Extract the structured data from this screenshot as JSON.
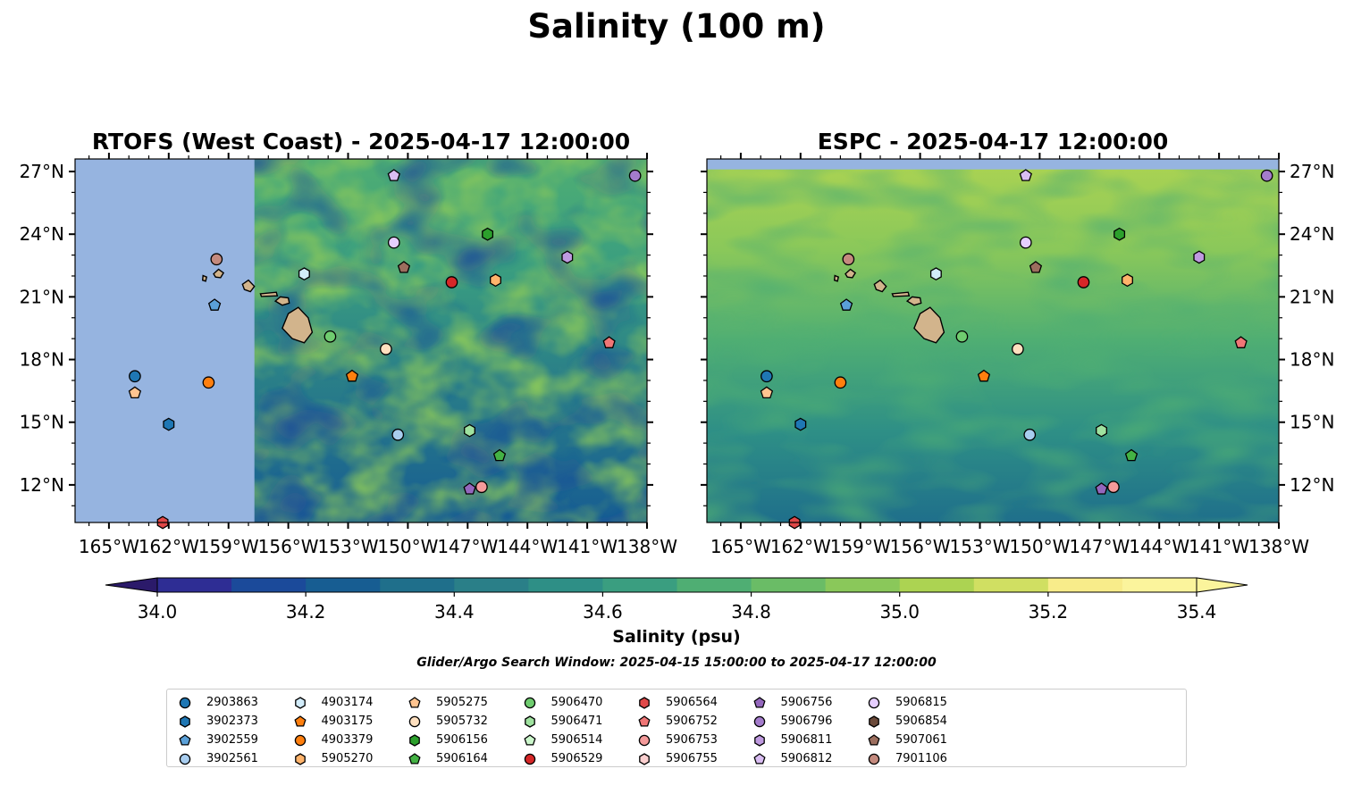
{
  "figure": {
    "title": "Salinity (100 m)",
    "search_window": "Glider/Argo Search Window: 2025-04-15 15:00:00 to 2025-04-17 12:00:00"
  },
  "colors": {
    "land_mask": "#96b4e0",
    "island_fill": "#d2b48c"
  },
  "chart_data": [
    {
      "type": "heatmap",
      "title": "RTOFS (West Coast) - 2025-04-17 12:00:00",
      "x_ticks": [
        "165°W",
        "162°W",
        "159°W",
        "156°W",
        "153°W",
        "150°W",
        "147°W",
        "144°W",
        "141°W",
        "138°W"
      ],
      "y_ticks": [
        "27°N",
        "24°N",
        "21°N",
        "18°N",
        "15°N",
        "12°N"
      ],
      "xlim": [
        -166.7,
        -138
      ],
      "ylim": [
        10.2,
        27.6
      ],
      "y_tick_side": "left",
      "no_data_region_lon_max": -157.7,
      "background_salinity": 34.75
    },
    {
      "type": "heatmap",
      "title": "ESPC - 2025-04-17 12:00:00",
      "x_ticks": [
        "165°W",
        "162°W",
        "159°W",
        "156°W",
        "153°W",
        "150°W",
        "147°W",
        "144°W",
        "141°W",
        "138°W"
      ],
      "y_ticks": [
        "27°N",
        "24°N",
        "21°N",
        "18°N",
        "15°N",
        "12°N"
      ],
      "xlim": [
        -166.7,
        -138
      ],
      "ylim": [
        10.2,
        27.6
      ],
      "y_tick_side": "right",
      "no_data_region_lat_min": 27.1,
      "background_salinity": 34.95
    }
  ],
  "colorbar": {
    "label": "Salinity (psu)",
    "ticks": [
      "34.0",
      "34.2",
      "34.4",
      "34.6",
      "34.8",
      "35.0",
      "35.2",
      "35.4"
    ],
    "min": 34.0,
    "max": 35.4,
    "step": 0.1,
    "colors": [
      "#2b1a6a",
      "#2e2d94",
      "#1b4a9a",
      "#175d92",
      "#1f6f8b",
      "#2a7f88",
      "#2e8f86",
      "#3a9e80",
      "#4fae73",
      "#6abc66",
      "#8ac85a",
      "#acd352",
      "#d0df62",
      "#f8ec8a",
      "#fbf49c"
    ]
  },
  "islands": [
    {
      "name": "hawaii",
      "lon": -155.5,
      "lat": 19.6
    },
    {
      "name": "maui",
      "lon": -156.3,
      "lat": 20.8
    },
    {
      "name": "molokai",
      "lon": -157.0,
      "lat": 21.1
    },
    {
      "name": "oahu",
      "lon": -158.0,
      "lat": 21.5
    },
    {
      "name": "kauai",
      "lon": -159.5,
      "lat": 22.1
    },
    {
      "name": "niihau",
      "lon": -160.2,
      "lat": 21.9
    }
  ],
  "floats": [
    {
      "id": "2903863",
      "marker": "circle",
      "color": "#1f77b4",
      "lon": -163.7,
      "lat": 17.2
    },
    {
      "id": "3902373",
      "marker": "hexagon",
      "color": "#1f77b4",
      "lon": -162.0,
      "lat": 14.9
    },
    {
      "id": "3902559",
      "marker": "pentagon",
      "color": "#5aa0d8",
      "lon": -159.7,
      "lat": 20.6
    },
    {
      "id": "3902561",
      "marker": "circle",
      "color": "#a8cdef",
      "lon": -150.5,
      "lat": 14.4
    },
    {
      "id": "4903174",
      "marker": "hexagon",
      "color": "#d2ecfa",
      "lon": -155.2,
      "lat": 22.1
    },
    {
      "id": "4903175",
      "marker": "pentagon",
      "color": "#ff7f0e",
      "lon": -152.8,
      "lat": 17.2
    },
    {
      "id": "4903379",
      "marker": "circle",
      "color": "#ff7f0e",
      "lon": -160.0,
      "lat": 16.9
    },
    {
      "id": "5905270",
      "marker": "hexagon",
      "color": "#ffb36b",
      "lon": -145.6,
      "lat": 21.8
    },
    {
      "id": "5905275",
      "marker": "pentagon",
      "color": "#ffc490",
      "lon": -163.7,
      "lat": 16.4
    },
    {
      "id": "5905732",
      "marker": "circle",
      "color": "#ffe0bf",
      "lon": -151.1,
      "lat": 18.5
    },
    {
      "id": "5906156",
      "marker": "hexagon",
      "color": "#2ca02c",
      "lon": -146.0,
      "lat": 24.0
    },
    {
      "id": "5906164",
      "marker": "pentagon",
      "color": "#44b244",
      "lon": -145.4,
      "lat": 13.4
    },
    {
      "id": "5906470",
      "marker": "circle",
      "color": "#6fcc6f",
      "lon": -153.9,
      "lat": 19.1
    },
    {
      "id": "5906471",
      "marker": "hexagon",
      "color": "#9fe29f",
      "lon": -146.9,
      "lat": 14.6
    },
    {
      "id": "5906514",
      "marker": "pentagon",
      "color": "#cbf6cb",
      "lon": -163.2,
      "lat": 0.0,
      "hidden": true
    },
    {
      "id": "5906529",
      "marker": "circle",
      "color": "#d62728",
      "lon": -147.8,
      "lat": 21.7
    },
    {
      "id": "5906564",
      "marker": "hexagon",
      "color": "#e04848",
      "lon": -162.3,
      "lat": 10.2
    },
    {
      "id": "5906752",
      "marker": "pentagon",
      "color": "#f07676",
      "lon": -139.9,
      "lat": 18.8
    },
    {
      "id": "5906753",
      "marker": "circle",
      "color": "#f49a9a",
      "lon": -146.3,
      "lat": 11.9
    },
    {
      "id": "5906755",
      "marker": "hexagon",
      "color": "#fcd0d0",
      "lon": -171.0,
      "lat": 0.0,
      "hidden": true
    },
    {
      "id": "5906756",
      "marker": "pentagon",
      "color": "#9467bd",
      "lon": -146.9,
      "lat": 11.8
    },
    {
      "id": "5906796",
      "marker": "circle",
      "color": "#a47ccc",
      "lon": -138.6,
      "lat": 26.8
    },
    {
      "id": "5906811",
      "marker": "hexagon",
      "color": "#bf9ae0",
      "lon": -142.0,
      "lat": 22.9
    },
    {
      "id": "5906812",
      "marker": "pentagon",
      "color": "#d9bdf2",
      "lon": -150.7,
      "lat": 26.8
    },
    {
      "id": "5906815",
      "marker": "circle",
      "color": "#e6ceff",
      "lon": -150.7,
      "lat": 23.6
    },
    {
      "id": "5906854",
      "marker": "hexagon",
      "color": "#6b4a3a",
      "lon": -171.0,
      "lat": 0.0,
      "hidden": true
    },
    {
      "id": "5907061",
      "marker": "pentagon",
      "color": "#9c6e5e",
      "lon": -150.2,
      "lat": 22.4
    },
    {
      "id": "7901106",
      "marker": "circle",
      "color": "#c48a7e",
      "lon": -159.6,
      "lat": 22.8
    }
  ],
  "legend": {
    "entries": [
      "2903863",
      "3902373",
      "3902559",
      "3902561",
      "4903174",
      "4903175",
      "4903379",
      "5905270",
      "5905275",
      "5905732",
      "5906156",
      "5906164",
      "5906470",
      "5906471",
      "5906514",
      "5906529",
      "5906564",
      "5906752",
      "5906753",
      "5906755",
      "5906756",
      "5906796",
      "5906811",
      "5906812",
      "5906815",
      "5906854",
      "5907061",
      "7901106"
    ]
  }
}
